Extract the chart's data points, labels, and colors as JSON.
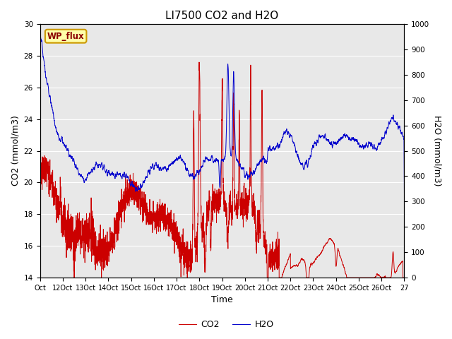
{
  "title": "LI7500 CO2 and H2O",
  "xlabel": "Time",
  "ylabel_left": "CO2 (mmol/m3)",
  "ylabel_right": "H2O (mmol/m3)",
  "ylim_left": [
    14,
    30
  ],
  "ylim_right": [
    0,
    1000
  ],
  "yticks_left": [
    14,
    16,
    18,
    20,
    22,
    24,
    26,
    28,
    30
  ],
  "yticks_right": [
    0,
    100,
    200,
    300,
    400,
    500,
    600,
    700,
    800,
    900,
    1000
  ],
  "xtick_labels": [
    "Oct",
    "12Oct",
    "13Oct",
    "14Oct",
    "15Oct",
    "16Oct",
    "17Oct",
    "18Oct",
    "19Oct",
    "20Oct",
    "21Oct",
    "22Oct",
    "23Oct",
    "24Oct",
    "25Oct",
    "26Oct",
    "27"
  ],
  "co2_color": "#cc0000",
  "h2o_color": "#0000cc",
  "background_color": "#e8e8e8",
  "fig_background": "#ffffff",
  "wp_flux_label": "WP_flux",
  "wp_flux_bg": "#ffffaa",
  "wp_flux_border": "#cc9900",
  "legend_co2": "CO2",
  "legend_h2o": "H2O",
  "title_fontsize": 11,
  "axis_fontsize": 9,
  "tick_fontsize": 7.5,
  "linewidth": 0.7
}
